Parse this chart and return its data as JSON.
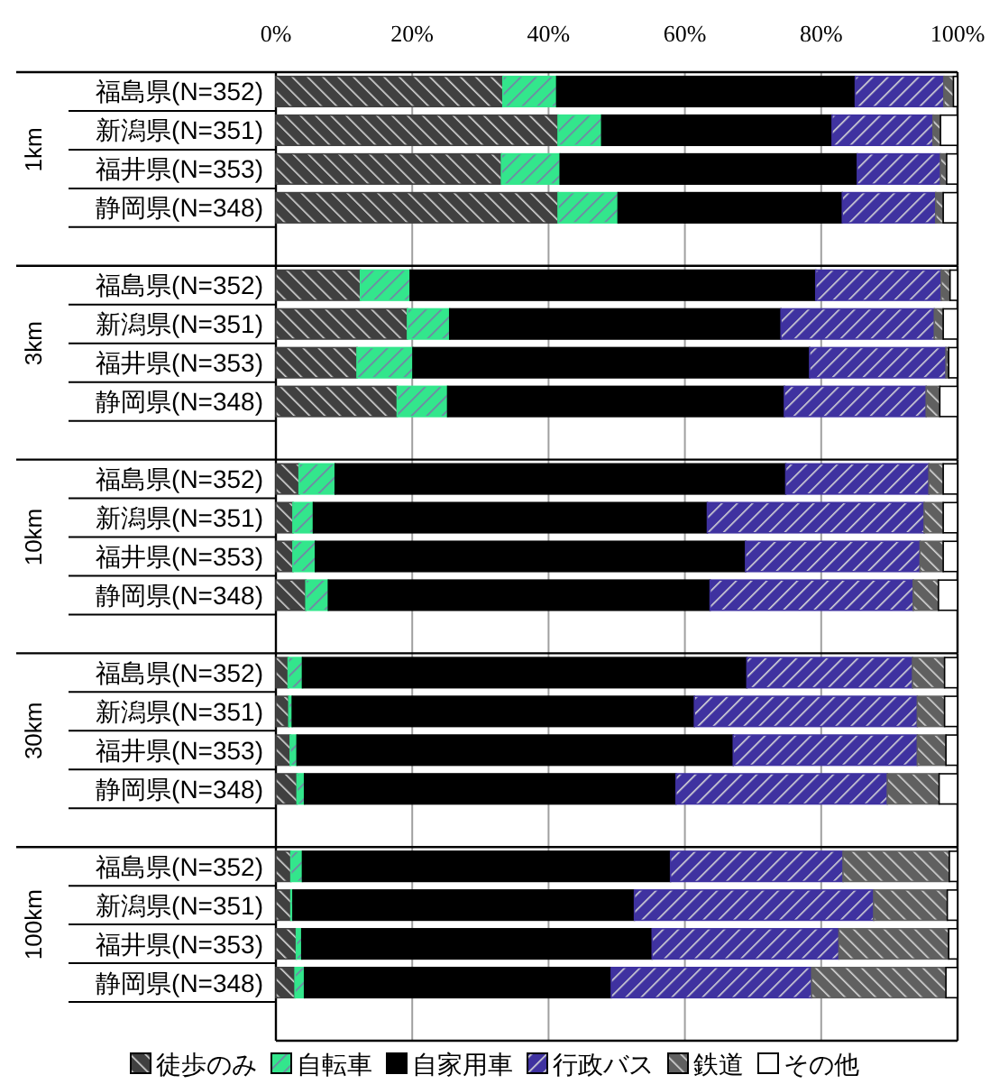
{
  "chart_data": [
    {
      "type": "bar",
      "orientation": "horizontal",
      "stacked": true,
      "ylabel": "1km",
      "grid": "x",
      "categories": [
        "福島県(N=352)",
        "新潟県(N=351)",
        "福井県(N=353)",
        "静岡県(N=348)"
      ],
      "xlim": [
        0,
        100
      ],
      "xticks": [
        {
          "value": 0,
          "label": "0%"
        },
        {
          "value": 20,
          "label": "20%"
        },
        {
          "value": 40,
          "label": "40%"
        },
        {
          "value": 60,
          "label": "60%"
        },
        {
          "value": 80,
          "label": "80%"
        },
        {
          "value": 100,
          "label": "100%"
        }
      ],
      "series": [
        {
          "color": "#404040",
          "values": [
            33.3,
            41.4,
            33.1,
            41.4
          ]
        },
        {
          "color": "#33e68c",
          "values": [
            7.9,
            6.4,
            8.6,
            8.8
          ]
        },
        {
          "color": "#000000",
          "values": [
            43.8,
            33.8,
            43.6,
            32.9
          ]
        },
        {
          "color": "#3f32a0",
          "values": [
            13.0,
            14.8,
            12.2,
            13.7
          ]
        },
        {
          "color": "#606060",
          "values": [
            1.4,
            1.1,
            0.9,
            1.1
          ]
        },
        {
          "color": "#ffffff",
          "values": [
            0.6,
            2.5,
            1.6,
            2.1
          ]
        }
      ]
    },
    {
      "type": "bar",
      "orientation": "horizontal",
      "stacked": true,
      "ylabel": "3km",
      "grid": "x",
      "tick_labels": "y",
      "categories": [
        "福島県(N=352)",
        "新潟県(N=351)",
        "福井県(N=353)",
        "静岡県(N=348)"
      ],
      "xlim": [
        0,
        100
      ],
      "xticks": [
        0,
        20,
        40,
        60,
        80,
        100
      ],
      "series": [
        {
          "color": "#404040",
          "values": [
            12.4,
            19.3,
            11.9,
            17.8
          ]
        },
        {
          "color": "#33e68c",
          "values": [
            7.3,
            6.2,
            8.2,
            7.4
          ]
        },
        {
          "color": "#000000",
          "values": [
            59.5,
            48.6,
            58.2,
            49.4
          ]
        },
        {
          "color": "#3f32a0",
          "values": [
            18.4,
            22.5,
            20.0,
            20.8
          ]
        },
        {
          "color": "#606060",
          "values": [
            1.3,
            1.3,
            0.4,
            2.0
          ]
        },
        {
          "color": "#ffffff",
          "values": [
            1.1,
            2.1,
            1.3,
            2.6
          ]
        }
      ]
    },
    {
      "type": "bar",
      "orientation": "horizontal",
      "stacked": true,
      "ylabel": "10km",
      "grid": "x",
      "tick_labels": "y",
      "categories": [
        "福島県(N=352)",
        "新潟県(N=351)",
        "福井県(N=353)",
        "静岡県(N=348)"
      ],
      "xlim": [
        0,
        100
      ],
      "xticks": [
        0,
        20,
        40,
        60,
        80,
        100
      ],
      "series": [
        {
          "color": "#404040",
          "values": [
            3.4,
            2.5,
            2.5,
            4.4
          ]
        },
        {
          "color": "#33e68c",
          "values": [
            5.3,
            3.0,
            3.3,
            3.3
          ]
        },
        {
          "color": "#000000",
          "values": [
            66.1,
            57.8,
            63.1,
            56.0
          ]
        },
        {
          "color": "#3f32a0",
          "values": [
            21.0,
            31.8,
            25.6,
            29.8
          ]
        },
        {
          "color": "#606060",
          "values": [
            2.1,
            2.8,
            3.4,
            3.7
          ]
        },
        {
          "color": "#ffffff",
          "values": [
            2.1,
            2.1,
            2.1,
            2.8
          ]
        }
      ]
    },
    {
      "type": "bar",
      "orientation": "horizontal",
      "stacked": true,
      "ylabel": "30km",
      "grid": "x",
      "tick_labels": "y",
      "categories": [
        "福島県(N=352)",
        "新潟県(N=351)",
        "福井県(N=353)",
        "静岡県(N=348)"
      ],
      "xlim": [
        0,
        100
      ],
      "xticks": [
        0,
        20,
        40,
        60,
        80,
        100
      ],
      "series": [
        {
          "color": "#404040",
          "values": [
            1.8,
            1.9,
            2.1,
            3.1
          ]
        },
        {
          "color": "#33e68c",
          "values": [
            2.1,
            0.5,
            1.0,
            1.1
          ]
        },
        {
          "color": "#000000",
          "values": [
            65.2,
            59.0,
            64.0,
            54.5
          ]
        },
        {
          "color": "#3f32a0",
          "values": [
            24.3,
            32.7,
            27.0,
            31.0
          ]
        },
        {
          "color": "#606060",
          "values": [
            4.7,
            4.0,
            4.2,
            7.6
          ]
        },
        {
          "color": "#ffffff",
          "values": [
            1.9,
            1.9,
            1.7,
            2.7
          ]
        }
      ]
    },
    {
      "type": "bar",
      "orientation": "horizontal",
      "stacked": true,
      "ylabel": "100km",
      "grid": "x",
      "tick_labels": "y",
      "legend": "bottom",
      "categories": [
        "福島県(N=352)",
        "新潟県(N=351)",
        "福井県(N=353)",
        "静岡県(N=348)"
      ],
      "xlim": [
        0,
        100
      ],
      "xticks": [
        0,
        20,
        40,
        60,
        80,
        100
      ],
      "series": [
        {
          "name": "徒歩のみ",
          "color": "#404040",
          "values": [
            2.2,
            2.2,
            3.0,
            2.8
          ]
        },
        {
          "name": "自転車",
          "color": "#33e68c",
          "values": [
            1.7,
            0.3,
            0.8,
            1.4
          ]
        },
        {
          "name": "自家用車",
          "color": "#000000",
          "values": [
            54.0,
            50.1,
            51.4,
            45.0
          ]
        },
        {
          "name": "行政バス",
          "color": "#3f32a0",
          "values": [
            25.3,
            35.1,
            27.4,
            29.4
          ]
        },
        {
          "name": "鉄道",
          "color": "#606060",
          "values": [
            15.6,
            10.8,
            16.1,
            19.7
          ]
        },
        {
          "name": "その他",
          "color": "#ffffff",
          "values": [
            1.2,
            1.5,
            1.3,
            1.7
          ]
        }
      ]
    }
  ]
}
